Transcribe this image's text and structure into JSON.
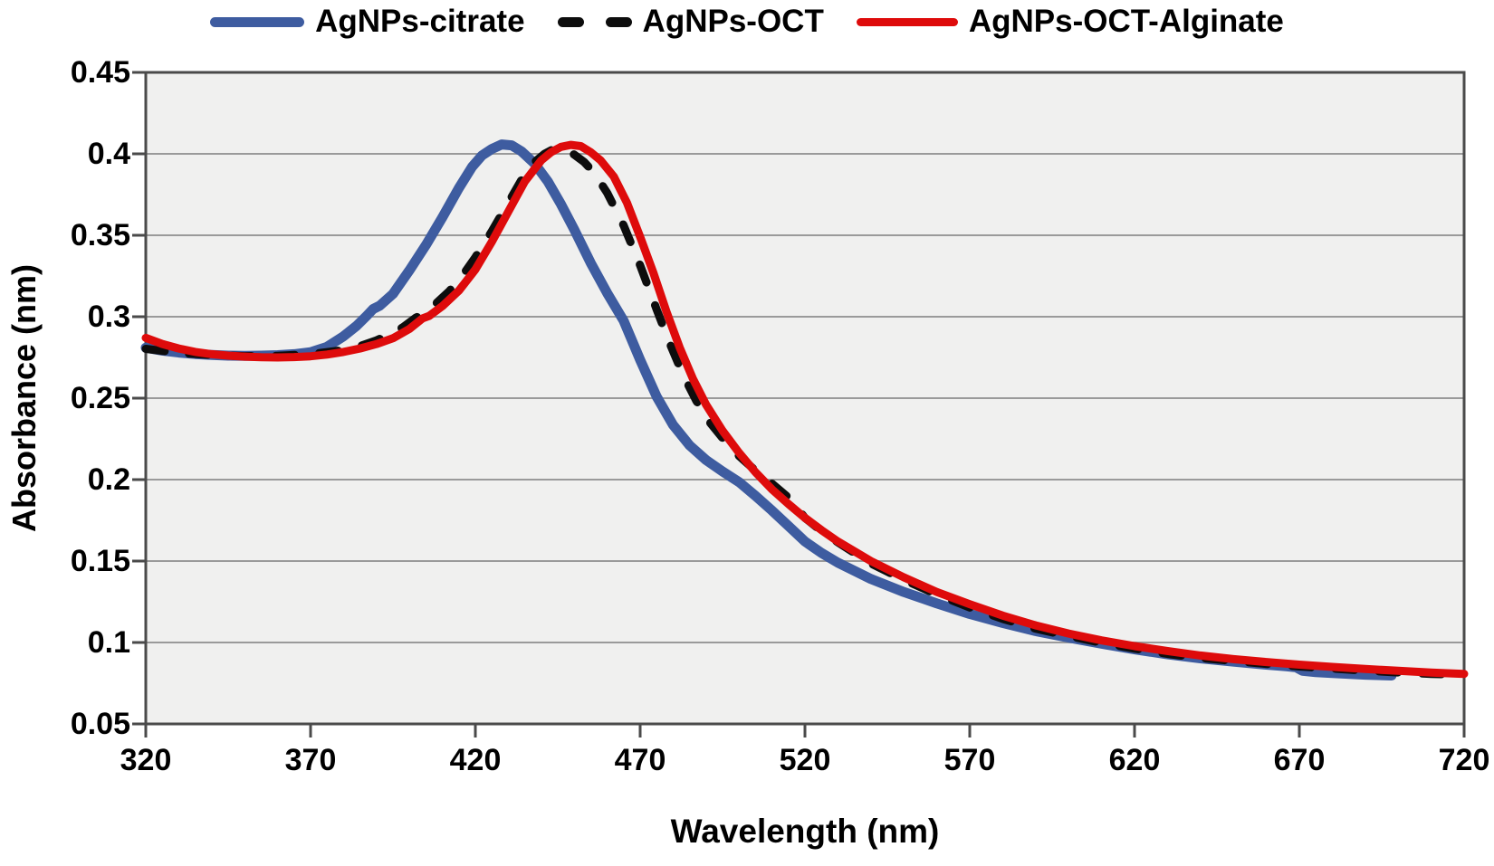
{
  "chart_data": {
    "type": "line",
    "title": "",
    "xlabel": "Wavelength (nm)",
    "ylabel": "Absorbance (nm)",
    "xlim": [
      320,
      720
    ],
    "ylim": [
      0.05,
      0.45
    ],
    "xticks": [
      320,
      370,
      420,
      470,
      520,
      570,
      620,
      670,
      720
    ],
    "xtick_labels": [
      "320",
      "370",
      "420",
      "470",
      "520",
      "570",
      "620",
      "670",
      "720"
    ],
    "yticks": [
      0.05,
      0.1,
      0.15,
      0.2,
      0.25,
      0.3,
      0.35,
      0.4,
      0.45
    ],
    "ytick_labels": [
      "0.05",
      "0.1",
      "0.15",
      "0.2",
      "0.25",
      "0.3",
      "0.35",
      "0.4",
      "0.45"
    ],
    "grid": "horizontal",
    "legend_position": "top",
    "plot_bg_color": "#f0f0ef",
    "grid_color": "#9a9a9a",
    "axis_color": "#4a4a4a",
    "series": [
      {
        "name": "AgNPs-citrate",
        "color": "#3e5ca0",
        "style": "solid",
        "width": 11,
        "peak": {
          "wavelength": 428,
          "absorbance": 0.406
        },
        "points": [
          [
            320,
            0.281
          ],
          [
            325,
            0.2792
          ],
          [
            330,
            0.278
          ],
          [
            335,
            0.2771
          ],
          [
            340,
            0.2765
          ],
          [
            345,
            0.2761
          ],
          [
            350,
            0.276
          ],
          [
            355,
            0.2761
          ],
          [
            360,
            0.2764
          ],
          [
            365,
            0.277
          ],
          [
            370,
            0.2782
          ],
          [
            375,
            0.2815
          ],
          [
            380,
            0.288
          ],
          [
            384,
            0.2945
          ],
          [
            387,
            0.3005
          ],
          [
            389,
            0.3048
          ],
          [
            391,
            0.3068
          ],
          [
            395,
            0.314
          ],
          [
            400,
            0.3285
          ],
          [
            405,
            0.344
          ],
          [
            410,
            0.361
          ],
          [
            415,
            0.379
          ],
          [
            419,
            0.392
          ],
          [
            422,
            0.399
          ],
          [
            425,
            0.403
          ],
          [
            428,
            0.4058
          ],
          [
            431,
            0.4052
          ],
          [
            434,
            0.4015
          ],
          [
            438,
            0.394
          ],
          [
            442,
            0.383
          ],
          [
            446,
            0.369
          ],
          [
            450,
            0.3535
          ],
          [
            455,
            0.333
          ],
          [
            460,
            0.3145
          ],
          [
            465,
            0.2975
          ],
          [
            470,
            0.2735
          ],
          [
            475,
            0.251
          ],
          [
            480,
            0.2335
          ],
          [
            485,
            0.221
          ],
          [
            490,
            0.212
          ],
          [
            495,
            0.205
          ],
          [
            500,
            0.1985
          ],
          [
            505,
            0.19
          ],
          [
            510,
            0.181
          ],
          [
            515,
            0.1715
          ],
          [
            520,
            0.162
          ],
          [
            525,
            0.155
          ],
          [
            530,
            0.149
          ],
          [
            540,
            0.139
          ],
          [
            550,
            0.131
          ],
          [
            560,
            0.124
          ],
          [
            570,
            0.1175
          ],
          [
            580,
            0.112
          ],
          [
            590,
            0.107
          ],
          [
            600,
            0.103
          ],
          [
            610,
            0.0992
          ],
          [
            620,
            0.0958
          ],
          [
            630,
            0.0928
          ],
          [
            640,
            0.0903
          ],
          [
            650,
            0.0882
          ],
          [
            660,
            0.0864
          ],
          [
            666,
            0.0854
          ],
          [
            669,
            0.0848
          ],
          [
            671,
            0.0826
          ],
          [
            675,
            0.0818
          ],
          [
            680,
            0.0812
          ],
          [
            690,
            0.0802
          ],
          [
            698,
            0.0797
          ]
        ]
      },
      {
        "name": "AgNPs-OCT",
        "color": "#0d0d0d",
        "style": "dashed",
        "width": 9,
        "peak": {
          "wavelength": 444,
          "absorbance": 0.403
        },
        "points": [
          [
            320,
            0.2803
          ],
          [
            330,
            0.2778
          ],
          [
            340,
            0.2765
          ],
          [
            350,
            0.2758
          ],
          [
            360,
            0.276
          ],
          [
            370,
            0.277
          ],
          [
            380,
            0.2795
          ],
          [
            385,
            0.282
          ],
          [
            390,
            0.2855
          ],
          [
            395,
            0.29
          ],
          [
            398,
            0.2935
          ],
          [
            402,
            0.2995
          ],
          [
            404,
            0.3015
          ],
          [
            408,
            0.308
          ],
          [
            412,
            0.3155
          ],
          [
            416,
            0.325
          ],
          [
            420,
            0.3365
          ],
          [
            425,
            0.3525
          ],
          [
            430,
            0.37
          ],
          [
            435,
            0.3875
          ],
          [
            438,
            0.395
          ],
          [
            441,
            0.4
          ],
          [
            444,
            0.4032
          ],
          [
            447,
            0.4031
          ],
          [
            450,
            0.3995
          ],
          [
            453,
            0.395
          ],
          [
            456,
            0.3885
          ],
          [
            460,
            0.376
          ],
          [
            465,
            0.356
          ],
          [
            470,
            0.3315
          ],
          [
            475,
            0.3045
          ],
          [
            479,
            0.2835
          ],
          [
            483,
            0.2645
          ],
          [
            487,
            0.2485
          ],
          [
            491,
            0.2355
          ],
          [
            495,
            0.2255
          ],
          [
            500,
            0.2145
          ],
          [
            505,
            0.2055
          ],
          [
            510,
            0.1975
          ],
          [
            515,
            0.189
          ],
          [
            520,
            0.1765
          ],
          [
            525,
            0.1685
          ],
          [
            530,
            0.1615
          ],
          [
            540,
            0.1485
          ],
          [
            550,
            0.1385
          ],
          [
            560,
            0.1295
          ],
          [
            570,
            0.1215
          ],
          [
            580,
            0.1145
          ],
          [
            590,
            0.1085
          ],
          [
            600,
            0.104
          ],
          [
            610,
            0.0998
          ],
          [
            620,
            0.0962
          ],
          [
            630,
            0.093
          ],
          [
            640,
            0.0905
          ],
          [
            650,
            0.0886
          ],
          [
            660,
            0.0869
          ],
          [
            670,
            0.0853
          ],
          [
            680,
            0.084
          ],
          [
            690,
            0.0827
          ],
          [
            700,
            0.0816
          ],
          [
            710,
            0.0807
          ],
          [
            720,
            0.0801
          ]
        ]
      },
      {
        "name": "AgNPs-OCT-Alginate",
        "color": "#de0b0b",
        "style": "solid",
        "width": 9,
        "peak": {
          "wavelength": 449,
          "absorbance": 0.406
        },
        "points": [
          [
            320,
            0.287
          ],
          [
            325,
            0.2833
          ],
          [
            330,
            0.2805
          ],
          [
            335,
            0.2784
          ],
          [
            340,
            0.277
          ],
          [
            345,
            0.2761
          ],
          [
            350,
            0.2755
          ],
          [
            355,
            0.2751
          ],
          [
            360,
            0.275
          ],
          [
            365,
            0.2752
          ],
          [
            370,
            0.2757
          ],
          [
            375,
            0.2768
          ],
          [
            380,
            0.2784
          ],
          [
            385,
            0.2805
          ],
          [
            390,
            0.2832
          ],
          [
            395,
            0.2868
          ],
          [
            400,
            0.2925
          ],
          [
            404,
            0.299
          ],
          [
            406,
            0.3005
          ],
          [
            410,
            0.3065
          ],
          [
            415,
            0.316
          ],
          [
            420,
            0.329
          ],
          [
            425,
            0.346
          ],
          [
            430,
            0.3645
          ],
          [
            435,
            0.383
          ],
          [
            440,
            0.396
          ],
          [
            443,
            0.401
          ],
          [
            446,
            0.4043
          ],
          [
            449,
            0.4055
          ],
          [
            452,
            0.4047
          ],
          [
            455,
            0.401
          ],
          [
            458,
            0.396
          ],
          [
            462,
            0.386
          ],
          [
            466,
            0.37
          ],
          [
            470,
            0.349
          ],
          [
            474,
            0.327
          ],
          [
            478,
            0.303
          ],
          [
            482,
            0.281
          ],
          [
            486,
            0.262
          ],
          [
            490,
            0.246
          ],
          [
            495,
            0.23
          ],
          [
            500,
            0.2165
          ],
          [
            505,
            0.2045
          ],
          [
            510,
            0.194
          ],
          [
            515,
            0.185
          ],
          [
            520,
            0.1765
          ],
          [
            525,
            0.169
          ],
          [
            530,
            0.162
          ],
          [
            540,
            0.15
          ],
          [
            550,
            0.14
          ],
          [
            560,
            0.131
          ],
          [
            570,
            0.1235
          ],
          [
            580,
            0.1165
          ],
          [
            590,
            0.1105
          ],
          [
            600,
            0.1055
          ],
          [
            610,
            0.1013
          ],
          [
            620,
            0.0978
          ],
          [
            630,
            0.0948
          ],
          [
            640,
            0.092
          ],
          [
            650,
            0.0898
          ],
          [
            660,
            0.088
          ],
          [
            670,
            0.0864
          ],
          [
            680,
            0.085
          ],
          [
            690,
            0.0837
          ],
          [
            700,
            0.0826
          ],
          [
            710,
            0.0815
          ],
          [
            720,
            0.0807
          ]
        ]
      }
    ]
  }
}
